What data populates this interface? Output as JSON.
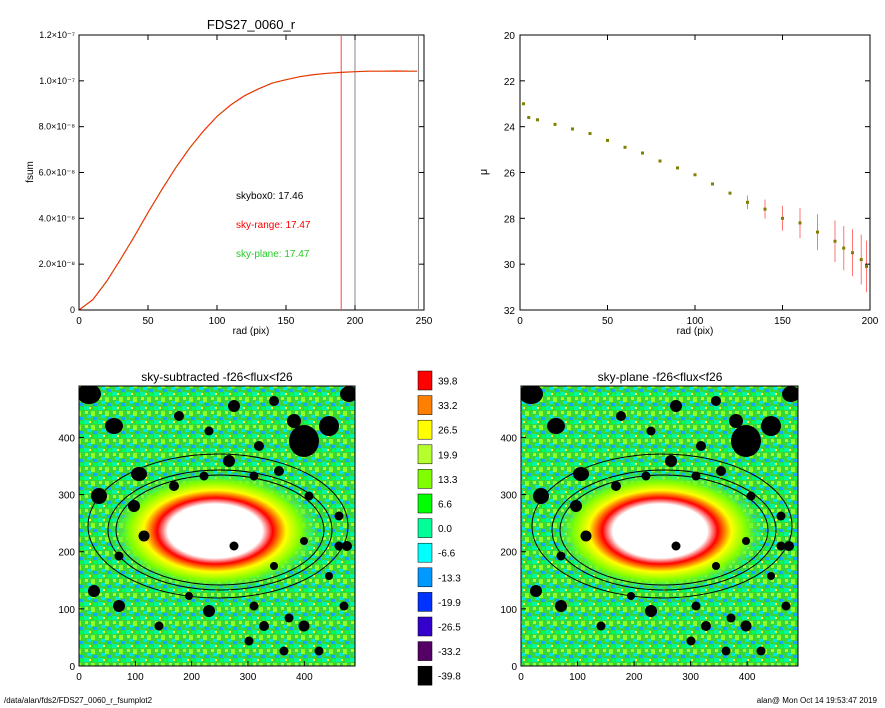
{
  "charts": {
    "cog": {
      "title": "FDS27_0060_r",
      "xlabel": "rad (pix)",
      "ylabel": "fsum",
      "annotations": [
        {
          "text": "skybox0: 17.46",
          "color": "#000000"
        },
        {
          "text": "sky-range: 17.47",
          "color": "#ff0000"
        },
        {
          "text": "sky-plane: 17.47",
          "color": "#00cc00"
        }
      ]
    },
    "profile": {
      "title": "",
      "xlabel": "rad (pix)",
      "ylabel": "μ"
    },
    "map_left": {
      "title": "sky-subtracted -f26<flux<f26"
    },
    "map_right": {
      "title": "sky-plane -f26<flux<f26"
    }
  },
  "chart_data": [
    {
      "type": "line",
      "title": "FDS27_0060_r",
      "xlabel": "rad (pix)",
      "ylabel": "fsum",
      "xlim": [
        0,
        250
      ],
      "ylim": [
        0,
        1.2e-07
      ],
      "xticks": [
        "0",
        "50",
        "100",
        "150",
        "200",
        "250"
      ],
      "yticks": [
        "0",
        "2.0×10⁻⁸",
        "4.0×10⁻⁸",
        "6.0×10⁻⁸",
        "8.0×10⁻⁸",
        "1.0×10⁻⁷",
        "1.2×10⁻⁷"
      ],
      "ytick_values": [
        0,
        2e-08,
        4e-08,
        6e-08,
        8e-08,
        1e-07,
        1.2e-07
      ],
      "series": [
        {
          "color": "#ff2200",
          "x": [
            0,
            10,
            20,
            30,
            40,
            50,
            60,
            70,
            80,
            90,
            100,
            110,
            120,
            130,
            140,
            150,
            160,
            170,
            180,
            190,
            200,
            210,
            220,
            230,
            240,
            245
          ],
          "y": [
            0,
            4.5e-09,
            1.25e-08,
            2.2e-08,
            3.2e-08,
            4.25e-08,
            5.25e-08,
            6.2e-08,
            7.05e-08,
            7.8e-08,
            8.45e-08,
            8.95e-08,
            9.35e-08,
            9.65e-08,
            9.9e-08,
            1.005e-07,
            1.018e-07,
            1.027e-07,
            1.033e-07,
            1.037e-07,
            1.04e-07,
            1.042e-07,
            1.042e-07,
            1.043e-07,
            1.042e-07,
            1.042e-07
          ]
        }
      ],
      "vlines": [
        {
          "x": 190,
          "color": "#ff4444"
        },
        {
          "x": 200,
          "color": "#888888"
        },
        {
          "x": 246,
          "color": "#888888"
        }
      ]
    },
    {
      "type": "scatter",
      "xlabel": "rad (pix)",
      "ylabel": "μ",
      "xlim": [
        0,
        200
      ],
      "ylim": [
        20,
        32
      ],
      "y_inverted": true,
      "xticks": [
        "0",
        "50",
        "100",
        "150",
        "200"
      ],
      "yticks": [
        "20",
        "22",
        "24",
        "26",
        "28",
        "30",
        "32"
      ],
      "series": [
        {
          "color": "#808000",
          "x": [
            2,
            5,
            10,
            20,
            30,
            40,
            50,
            60,
            70,
            80,
            90,
            100,
            110,
            120,
            130,
            140,
            150,
            160,
            170,
            180,
            185,
            190,
            195,
            198
          ],
          "y": [
            23.0,
            23.6,
            23.7,
            23.9,
            24.1,
            24.3,
            24.6,
            24.9,
            25.15,
            25.5,
            25.8,
            26.1,
            26.5,
            26.9,
            27.3,
            27.6,
            28.0,
            28.2,
            28.6,
            29.0,
            29.3,
            29.5,
            29.8,
            30.1
          ]
        }
      ]
    },
    {
      "type": "heatmap",
      "title": "sky-subtracted -f26<flux<f26",
      "xlim": [
        0,
        490
      ],
      "ylim": [
        0,
        490
      ],
      "xticks": [
        "0",
        "100",
        "200",
        "300",
        "400"
      ],
      "yticks": [
        "0",
        "100",
        "200",
        "300",
        "400"
      ]
    },
    {
      "type": "heatmap",
      "title": "sky-plane -f26<flux<f26",
      "xlim": [
        0,
        490
      ],
      "ylim": [
        0,
        490
      ],
      "xticks": [
        "0",
        "100",
        "200",
        "300",
        "400"
      ],
      "yticks": [
        "0",
        "100",
        "200",
        "300",
        "400"
      ]
    }
  ],
  "colorbar": {
    "labels": [
      "39.8",
      "33.2",
      "26.5",
      "19.9",
      "13.3",
      "6.6",
      "0.0",
      "-6.6",
      "-13.3",
      "-19.9",
      "-26.5",
      "-33.2",
      "-39.8"
    ],
    "colors": [
      "#ff0000",
      "#ff7f00",
      "#ffff00",
      "#b5ff2f",
      "#80ff00",
      "#00ff00",
      "#00ff99",
      "#00ffff",
      "#0099ff",
      "#0033ff",
      "#3300cc",
      "#550066",
      "#000000"
    ]
  },
  "footer": {
    "path": "/data/alan/fds2/FDS27_0060_r_fsumplot2",
    "stamp": "alan@  Mon Oct 14 19:53:47 2019"
  }
}
